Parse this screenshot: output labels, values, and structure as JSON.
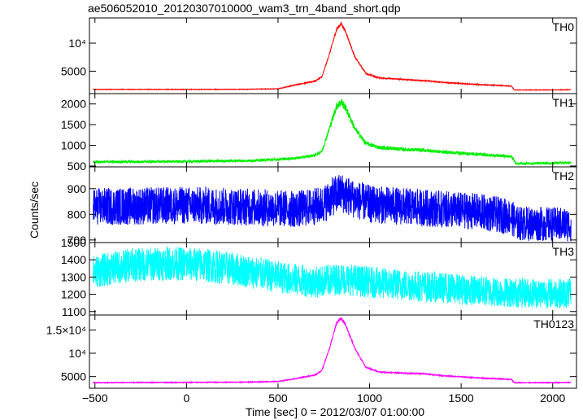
{
  "chart_data": {
    "type": "line",
    "title": "ae506052010_20120307010000_wam3_trn_4band_short.qdp",
    "xlabel": "Time [sec] 0 = 2012/03/07 01:00:00",
    "ylabel": "Counts/sec",
    "xlim": [
      -530,
      2130
    ],
    "x_ticks": [
      {
        "value": -500,
        "label": "−500"
      },
      {
        "value": 0,
        "label": "0"
      },
      {
        "value": 500,
        "label": "500"
      },
      {
        "value": 1000,
        "label": "1000"
      },
      {
        "value": 1500,
        "label": "1500"
      },
      {
        "value": 2000,
        "label": "2000"
      }
    ],
    "panels": [
      {
        "name": "TH0",
        "color": "#ff0000",
        "ylim": [
          1000,
          14500
        ],
        "y_ticks": [
          {
            "value": 5000,
            "label": "5000"
          },
          {
            "value": 10000,
            "label": "10⁴"
          }
        ],
        "series": [
          {
            "x": -510,
            "y": 1750
          },
          {
            "x": 0,
            "y": 1750
          },
          {
            "x": 300,
            "y": 1770
          },
          {
            "x": 500,
            "y": 1850
          },
          {
            "x": 600,
            "y": 2600
          },
          {
            "x": 700,
            "y": 3200
          },
          {
            "x": 740,
            "y": 4000
          },
          {
            "x": 780,
            "y": 8000
          },
          {
            "x": 820,
            "y": 12500
          },
          {
            "x": 845,
            "y": 13500
          },
          {
            "x": 870,
            "y": 12000
          },
          {
            "x": 920,
            "y": 7500
          },
          {
            "x": 980,
            "y": 4600
          },
          {
            "x": 1050,
            "y": 3800
          },
          {
            "x": 1200,
            "y": 3500
          },
          {
            "x": 1300,
            "y": 3300
          },
          {
            "x": 1400,
            "y": 3000
          },
          {
            "x": 1600,
            "y": 2600
          },
          {
            "x": 1775,
            "y": 2350
          },
          {
            "x": 1790,
            "y": 1650
          },
          {
            "x": 2000,
            "y": 1650
          },
          {
            "x": 2100,
            "y": 1700
          }
        ],
        "noise": 0.015
      },
      {
        "name": "TH1",
        "color": "#00ee00",
        "ylim": [
          480,
          2250
        ],
        "y_ticks": [
          {
            "value": 500,
            "label": "500"
          },
          {
            "value": 1000,
            "label": "1000"
          },
          {
            "value": 1500,
            "label": "1500"
          },
          {
            "value": 2000,
            "label": "2000"
          }
        ],
        "series": [
          {
            "x": -510,
            "y": 600
          },
          {
            "x": 0,
            "y": 610
          },
          {
            "x": 350,
            "y": 630
          },
          {
            "x": 500,
            "y": 660
          },
          {
            "x": 600,
            "y": 690
          },
          {
            "x": 700,
            "y": 760
          },
          {
            "x": 740,
            "y": 860
          },
          {
            "x": 780,
            "y": 1400
          },
          {
            "x": 820,
            "y": 1950
          },
          {
            "x": 845,
            "y": 2050
          },
          {
            "x": 870,
            "y": 1900
          },
          {
            "x": 920,
            "y": 1400
          },
          {
            "x": 980,
            "y": 1050
          },
          {
            "x": 1050,
            "y": 950
          },
          {
            "x": 1200,
            "y": 900
          },
          {
            "x": 1300,
            "y": 880
          },
          {
            "x": 1400,
            "y": 840
          },
          {
            "x": 1600,
            "y": 780
          },
          {
            "x": 1775,
            "y": 730
          },
          {
            "x": 1800,
            "y": 560
          },
          {
            "x": 2000,
            "y": 570
          },
          {
            "x": 2100,
            "y": 580
          }
        ],
        "noise": 0.03
      },
      {
        "name": "TH2",
        "color": "#0000ff",
        "ylim": [
          690,
          985
        ],
        "y_ticks": [
          {
            "value": 700,
            "label": "700"
          },
          {
            "value": 800,
            "label": "800"
          },
          {
            "value": 900,
            "label": "900"
          }
        ],
        "series": [
          {
            "x": -510,
            "y": 830
          },
          {
            "x": 0,
            "y": 835
          },
          {
            "x": 300,
            "y": 830
          },
          {
            "x": 600,
            "y": 820
          },
          {
            "x": 740,
            "y": 835
          },
          {
            "x": 800,
            "y": 870
          },
          {
            "x": 845,
            "y": 885
          },
          {
            "x": 900,
            "y": 865
          },
          {
            "x": 1000,
            "y": 840
          },
          {
            "x": 1300,
            "y": 825
          },
          {
            "x": 1600,
            "y": 810
          },
          {
            "x": 1775,
            "y": 790
          },
          {
            "x": 1800,
            "y": 765
          },
          {
            "x": 2100,
            "y": 760
          }
        ],
        "noise": 0.055
      },
      {
        "name": "TH3",
        "color": "#00ffff",
        "ylim": [
          1080,
          1500
        ],
        "y_ticks": [
          {
            "value": 1100,
            "label": "1100"
          },
          {
            "value": 1200,
            "label": "1200"
          },
          {
            "value": 1300,
            "label": "1300"
          },
          {
            "value": 1400,
            "label": "1400"
          },
          {
            "value": 1500,
            "label": "1500"
          }
        ],
        "series": [
          {
            "x": -510,
            "y": 1330
          },
          {
            "x": -300,
            "y": 1370
          },
          {
            "x": -100,
            "y": 1380
          },
          {
            "x": 100,
            "y": 1370
          },
          {
            "x": 300,
            "y": 1340
          },
          {
            "x": 500,
            "y": 1300
          },
          {
            "x": 700,
            "y": 1270
          },
          {
            "x": 845,
            "y": 1290
          },
          {
            "x": 1000,
            "y": 1270
          },
          {
            "x": 1300,
            "y": 1245
          },
          {
            "x": 1600,
            "y": 1220
          },
          {
            "x": 1775,
            "y": 1210
          },
          {
            "x": 2100,
            "y": 1205
          }
        ],
        "noise": 0.045
      },
      {
        "name": "TH0123",
        "color": "#ff00ff",
        "ylim": [
          2500,
          18200
        ],
        "y_ticks": [
          {
            "value": 5000,
            "label": "5000"
          },
          {
            "value": 10000,
            "label": "10⁴"
          },
          {
            "value": 15000,
            "label": "1.5×10⁴"
          }
        ],
        "series": [
          {
            "x": -510,
            "y": 3700
          },
          {
            "x": 0,
            "y": 3750
          },
          {
            "x": 300,
            "y": 3800
          },
          {
            "x": 500,
            "y": 3950
          },
          {
            "x": 600,
            "y": 4600
          },
          {
            "x": 700,
            "y": 5300
          },
          {
            "x": 740,
            "y": 6300
          },
          {
            "x": 780,
            "y": 11000
          },
          {
            "x": 820,
            "y": 16500
          },
          {
            "x": 845,
            "y": 17500
          },
          {
            "x": 870,
            "y": 16000
          },
          {
            "x": 920,
            "y": 11000
          },
          {
            "x": 980,
            "y": 7000
          },
          {
            "x": 1050,
            "y": 6000
          },
          {
            "x": 1200,
            "y": 5700
          },
          {
            "x": 1300,
            "y": 5600
          },
          {
            "x": 1400,
            "y": 5200
          },
          {
            "x": 1600,
            "y": 4700
          },
          {
            "x": 1775,
            "y": 4400
          },
          {
            "x": 1790,
            "y": 3700
          },
          {
            "x": 2000,
            "y": 3700
          },
          {
            "x": 2100,
            "y": 3750
          }
        ],
        "noise": 0.012
      }
    ],
    "grid": false,
    "legend": "panel labels top-right"
  }
}
